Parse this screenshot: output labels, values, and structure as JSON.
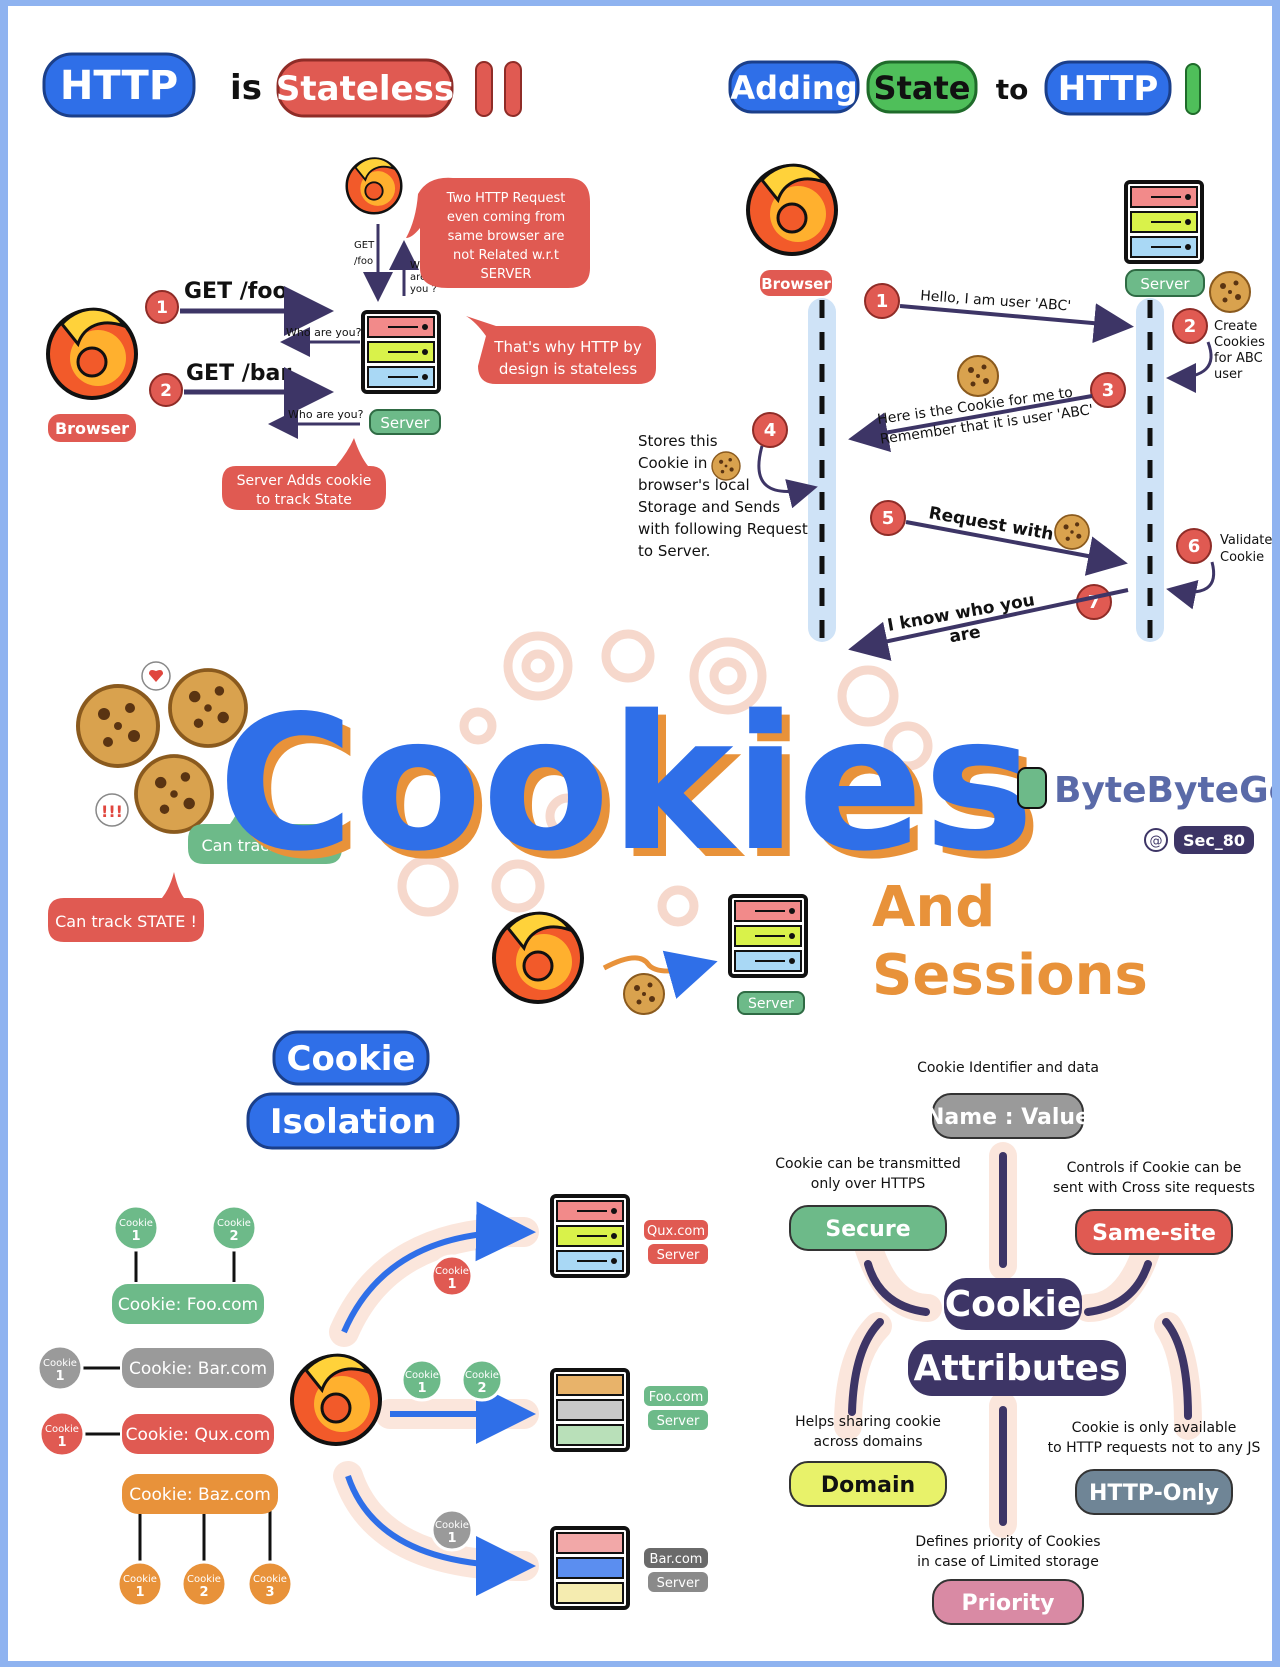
{
  "stateless": {
    "title_http": "HTTP",
    "title_is": "is",
    "title_stateless": "Stateless",
    "browser": "Browser",
    "server": "Server",
    "req1_num": "1",
    "req1_label": "GET /foo",
    "req2_num": "2",
    "req2_label": "GET /bar",
    "who1": "Who are you?",
    "who2": "Who are you?",
    "get_foo_line1": "GET",
    "get_foo_line2": "/foo",
    "who_are_you_lines": [
      "Who",
      "are",
      "you ?"
    ],
    "bubble_lines": [
      "Two HTTP Request",
      "even coming from",
      "same browser are",
      "not Related w.r.t",
      "SERVER"
    ],
    "why_lines": [
      "That's why HTTP by",
      "design is stateless"
    ],
    "adds_cookie_lines": [
      "Server Adds cookie",
      "to track State"
    ]
  },
  "adding_state": {
    "title_adding": "Adding",
    "title_state": "State",
    "title_to": "to",
    "title_http": "HTTP",
    "browser": "Browser",
    "server": "Server",
    "steps": [
      {
        "num": "1",
        "text": "Hello, I am user 'ABC'"
      },
      {
        "num": "2",
        "text_lines": [
          "Create",
          "Cookies",
          "for ABC",
          "user"
        ]
      },
      {
        "num": "3",
        "text_lines": [
          "Here is the Cookie for me to",
          "Remember that it is user 'ABC'"
        ]
      },
      {
        "num": "4",
        "text_lines": [
          "Stores this",
          "Cookie in",
          "browser's local",
          "Storage and Sends",
          "with following Request",
          "to Server."
        ]
      },
      {
        "num": "5",
        "text": "Request with"
      },
      {
        "num": "6",
        "text_lines": [
          "Validate",
          "Cookie"
        ]
      },
      {
        "num": "7",
        "text_lines": [
          "I know who you",
          "are"
        ]
      }
    ]
  },
  "center": {
    "title": "Cookies",
    "subtitle_line1": "And",
    "subtitle_line2": "Sessions",
    "track_user": "Can track USER",
    "track_state": "Can track STATE !",
    "server": "Server",
    "brand": "ByteByteGo",
    "handle": "Sec_80"
  },
  "isolation": {
    "title_line1": "Cookie",
    "title_line2": "Isolation",
    "groups": [
      {
        "label": "Cookie: Foo.com",
        "cookies": [
          "Cookie 1",
          "Cookie 2"
        ]
      },
      {
        "label": "Cookie: Bar.com",
        "cookies": [
          "Cookie 1"
        ]
      },
      {
        "label": "Cookie: Qux.com",
        "cookies": [
          "Cookie 1"
        ]
      },
      {
        "label": "Cookie: Baz.com",
        "cookies": [
          "Cookie 1",
          "Cookie 2",
          "Cookie 3"
        ]
      }
    ],
    "servers": [
      {
        "domain": "Qux.com",
        "label": "Server",
        "cookies": [
          "Cookie 1"
        ]
      },
      {
        "domain": "Foo.com",
        "label": "Server",
        "cookies": [
          "Cookie 1",
          "Cookie 2"
        ]
      },
      {
        "domain": "Bar.com",
        "label": "Server",
        "cookies": [
          "Cookie 1"
        ]
      }
    ]
  },
  "attributes": {
    "title_line1": "Cookie",
    "title_line2": "Attributes",
    "items": [
      {
        "name": "Name : Value",
        "desc_lines": [
          "Cookie Identifier and data"
        ]
      },
      {
        "name": "Secure",
        "desc_lines": [
          "Cookie can be transmitted",
          "only over HTTPS"
        ]
      },
      {
        "name": "Same-site",
        "desc_lines": [
          "Controls if Cookie can be",
          "sent with Cross site requests"
        ]
      },
      {
        "name": "Domain",
        "desc_lines": [
          "Helps sharing cookie",
          "across domains"
        ]
      },
      {
        "name": "HTTP-Only",
        "desc_lines": [
          "Cookie is only available",
          "to HTTP requests not to any JS"
        ]
      },
      {
        "name": "Priority",
        "desc_lines": [
          "Defines priority of Cookies",
          "in case of Limited storage"
        ]
      }
    ]
  },
  "colors": {
    "blue": "#2f6fe8",
    "red": "#e05a52",
    "green": "#6dba89",
    "orange": "#e8923a",
    "purple": "#3d3566",
    "gray": "#9a9a9a",
    "yellow": "#e8f26a"
  }
}
